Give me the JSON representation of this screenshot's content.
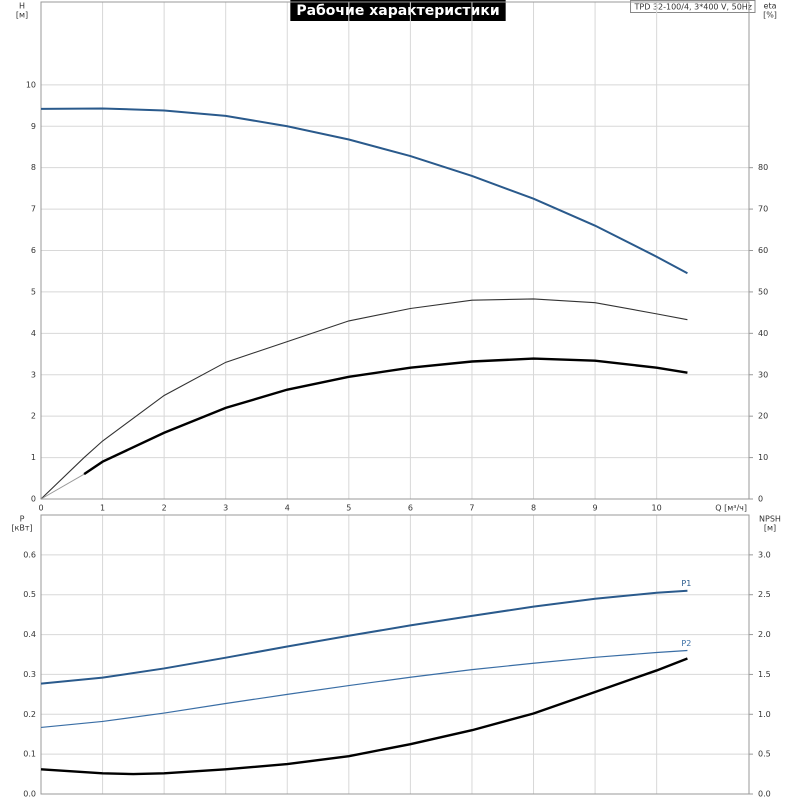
{
  "chart_data": [
    {
      "type": "line",
      "title": "Рабочие характеристики",
      "subtitle": "TPD 32-100/4, 3*400 V, 50Hz",
      "ylabel": "H",
      "yunit": "[м]",
      "y2label": "eta",
      "y2unit": "[%]",
      "xlabel": "Q [м³/ч]",
      "xlim": [
        0,
        11.5
      ],
      "xticks": [
        0,
        1,
        2,
        3,
        4,
        5,
        6,
        7,
        8,
        9,
        10
      ],
      "ylim": [
        0,
        12
      ],
      "yticks": [
        0,
        1,
        2,
        3,
        4,
        5,
        6,
        7,
        8,
        9,
        10
      ],
      "y2lim": [
        0,
        120
      ],
      "y2ticks": [
        0,
        10,
        20,
        30,
        40,
        50,
        60,
        70,
        80
      ],
      "grid": true,
      "series": [
        {
          "color": "#2a5a8c",
          "x": [
            0,
            1,
            2,
            3,
            4,
            5,
            6,
            7,
            8,
            9,
            10,
            10.5
          ],
          "values": [
            9.42,
            9.43,
            9.38,
            9.25,
            9.0,
            8.68,
            8.28,
            7.8,
            7.25,
            6.6,
            5.85,
            5.45
          ]
        },
        {
          "color": "#333333",
          "axis": "y2",
          "x": [
            0,
            0.7,
            1,
            2,
            3,
            4,
            5,
            6,
            7,
            8,
            9,
            10,
            10.5
          ],
          "values": [
            0,
            10,
            14,
            25,
            33,
            38,
            43,
            46,
            48,
            48.3,
            47.4,
            44.7,
            43.3
          ]
        },
        {
          "color": "#000000",
          "axis": "y2",
          "x": [
            0.7,
            1,
            2,
            3,
            4,
            5,
            6,
            7,
            8,
            9,
            10,
            10.5
          ],
          "values": [
            6,
            9,
            16,
            22,
            26.4,
            29.5,
            31.7,
            33.2,
            33.9,
            33.4,
            31.7,
            30.5
          ]
        },
        {
          "color": "#999999",
          "axis": "y2",
          "x": [
            0,
            0.7
          ],
          "values": [
            0,
            6
          ]
        }
      ]
    },
    {
      "type": "line",
      "ylabel": "P",
      "yunit": "[кВт]",
      "y2label": "NPSH",
      "y2unit": "[м]",
      "xlim": [
        0,
        11.5
      ],
      "ylim": [
        0,
        0.7
      ],
      "yticks": [
        {
          "value": 0,
          "label": "0.0"
        },
        0.1,
        0.2,
        0.3,
        0.4,
        0.5,
        0.6
      ],
      "y2lim": [
        0,
        3.5
      ],
      "y2ticks": [
        {
          "value": 0,
          "label": "0.0"
        },
        0.5,
        {
          "value": 1,
          "label": "1.0"
        },
        1.5,
        {
          "value": 2,
          "label": "2.0"
        },
        2.5,
        {
          "value": 3,
          "label": "3.0"
        }
      ],
      "grid": true,
      "series": [
        {
          "name": "P1",
          "color": "#2a5a8c",
          "x": [
            0,
            1,
            2,
            3,
            4,
            5,
            6,
            7,
            8,
            9,
            10,
            10.5
          ],
          "values": [
            0.277,
            0.292,
            0.315,
            0.342,
            0.37,
            0.397,
            0.423,
            0.447,
            0.47,
            0.49,
            0.505,
            0.51
          ]
        },
        {
          "name": "P2",
          "color": "#3a6ea5",
          "x": [
            0,
            1,
            2,
            3,
            4,
            5,
            6,
            7,
            8,
            9,
            10,
            10.5
          ],
          "values": [
            0.167,
            0.182,
            0.203,
            0.227,
            0.25,
            0.272,
            0.293,
            0.312,
            0.328,
            0.343,
            0.355,
            0.36
          ]
        },
        {
          "color": "#000000",
          "axis": "y2",
          "x": [
            0,
            1,
            1.5,
            2,
            3,
            4,
            5,
            6,
            7,
            8,
            9,
            10,
            10.5
          ],
          "values": [
            0.31,
            0.26,
            0.25,
            0.26,
            0.31,
            0.375,
            0.475,
            0.625,
            0.8,
            1.01,
            1.28,
            1.55,
            1.7
          ]
        }
      ]
    }
  ]
}
